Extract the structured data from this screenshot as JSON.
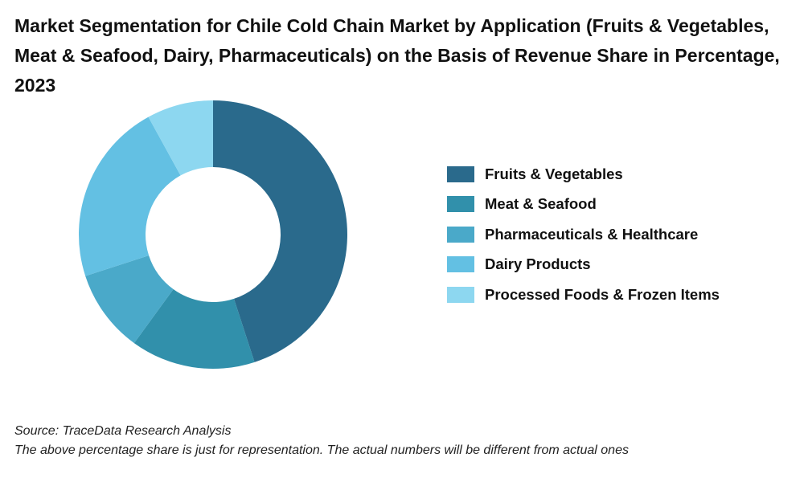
{
  "title": "Market Segmentation for Chile Cold Chain Market by Application (Fruits & Vegetables, Meat & Seafood, Dairy, Pharmaceuticals) on the Basis of Revenue Share in Percentage, 2023",
  "chart_data": {
    "type": "pie",
    "donut": true,
    "title": "Market Segmentation for Chile Cold Chain Market by Application (Fruits & Vegetables, Meat & Seafood, Dairy, Pharmaceuticals) on the Basis of Revenue Share in Percentage, 2023",
    "legend_position": "right",
    "categories": [
      "Fruits & Vegetables",
      "Meat & Seafood",
      "Pharmaceuticals & Healthcare",
      "Dairy Products",
      "Processed Foods & Frozen Items"
    ],
    "values": [
      45,
      15,
      10,
      22,
      8
    ],
    "unit": "%",
    "colors": [
      "#2a6a8c",
      "#3190ab",
      "#4aa9c9",
      "#63c0e3",
      "#8dd7f0"
    ]
  },
  "footer": {
    "source": "Source: TraceData Research Analysis",
    "note": "The above percentage share is just for representation. The actual numbers will be different from actual ones"
  }
}
